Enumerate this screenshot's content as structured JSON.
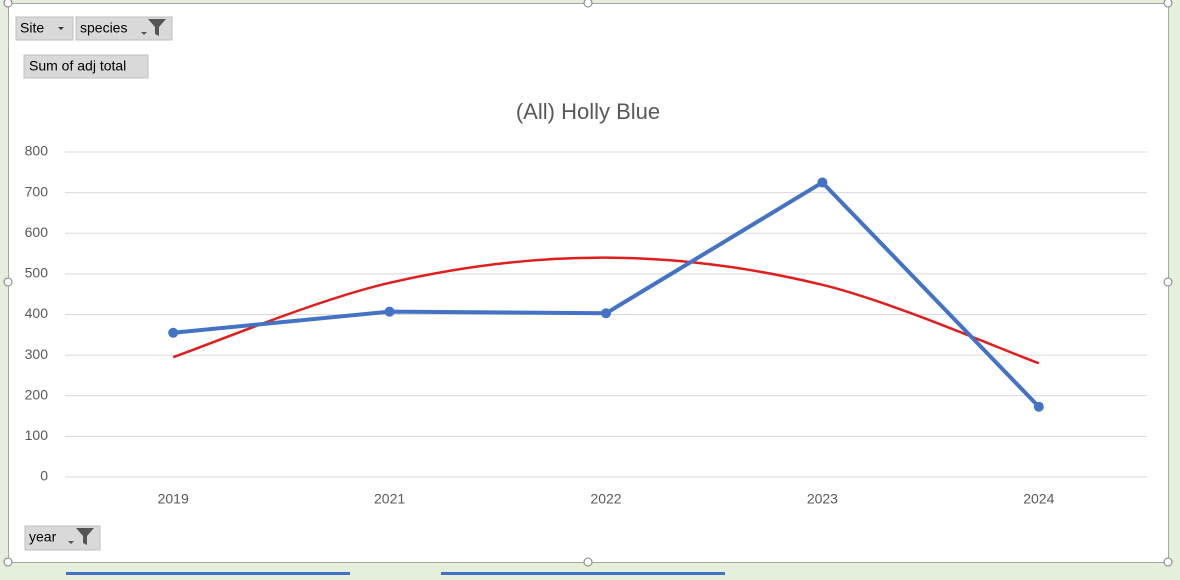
{
  "pivot_buttons": {
    "site": "Site",
    "species": "species",
    "values_field": "Sum of adj total",
    "axis_field": "year"
  },
  "chart_data": {
    "type": "line",
    "title": "(All) Holly Blue",
    "categories": [
      "2019",
      "2021",
      "2022",
      "2023",
      "2024"
    ],
    "series": [
      {
        "color": "#4472c4",
        "values": [
          355,
          407,
          403,
          725,
          173
        ],
        "markers": true
      },
      {
        "color": "#e01e1e",
        "values": [
          295,
          478,
          540,
          473,
          280
        ],
        "markers": false,
        "smooth": true
      }
    ],
    "ylim": [
      0,
      800
    ],
    "yticks": [
      0,
      100,
      200,
      300,
      400,
      500,
      600,
      700,
      800
    ],
    "grid": true
  }
}
